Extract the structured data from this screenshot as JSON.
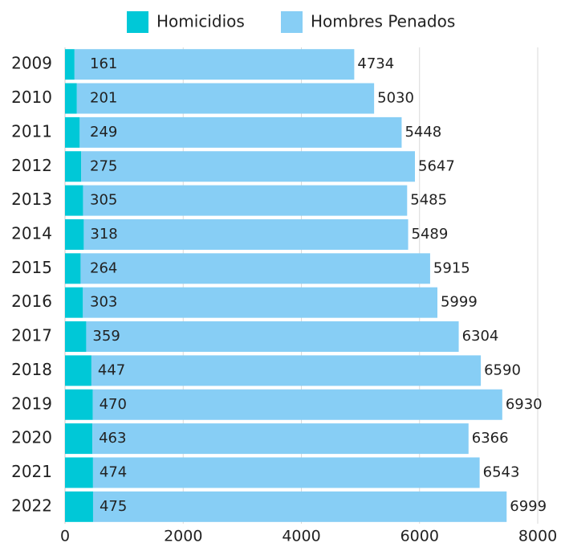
{
  "chart_data": {
    "type": "stacked_barh",
    "categories": [
      "2009",
      "2010",
      "2011",
      "2012",
      "2013",
      "2014",
      "2015",
      "2016",
      "2017",
      "2018",
      "2019",
      "2020",
      "2021",
      "2022"
    ],
    "series": [
      {
        "name": "Homicidios",
        "color": "#00c8d7",
        "values": [
          161,
          201,
          249,
          275,
          305,
          318,
          264,
          303,
          359,
          447,
          470,
          463,
          474,
          475
        ]
      },
      {
        "name": "Hombres Penados",
        "color": "#87cef5",
        "values": [
          4734,
          5030,
          5448,
          5647,
          5485,
          5489,
          5915,
          5999,
          6304,
          6590,
          6930,
          6366,
          6543,
          6999
        ]
      }
    ],
    "xlim": [
      0,
      8000
    ],
    "xticks": [
      0,
      2000,
      4000,
      6000,
      8000
    ],
    "grid": true,
    "legend": "top"
  }
}
